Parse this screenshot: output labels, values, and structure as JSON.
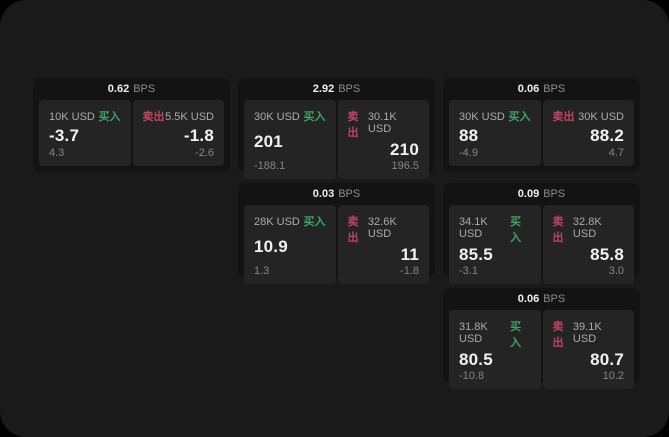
{
  "colors": {
    "page_bg": "#000000",
    "window_bg": "#1a1a1a",
    "card_bg": "#131313",
    "panel_bg": "#242424",
    "buy_green": "#3da366",
    "sell_red": "#c0455f"
  },
  "cards": [
    {
      "grid": {
        "row": 1,
        "col": 1
      },
      "bps_value": "0.62",
      "bps_unit": "BPS",
      "buy": {
        "size": "10K USD",
        "side_label": "买入",
        "price": "-3.7",
        "delta": "4.3"
      },
      "sell": {
        "side_label": "卖出",
        "size": "5.5K USD",
        "price": "-1.8",
        "delta": "-2.6"
      }
    },
    {
      "grid": {
        "row": 1,
        "col": 2
      },
      "bps_value": "2.92",
      "bps_unit": "BPS",
      "buy": {
        "size": "30K USD",
        "side_label": "买入",
        "price": "201",
        "delta": "-188.1"
      },
      "sell": {
        "side_label": "卖出",
        "size": "30.1K USD",
        "price": "210",
        "delta": "196.5"
      }
    },
    {
      "grid": {
        "row": 1,
        "col": 3
      },
      "bps_value": "0.06",
      "bps_unit": "BPS",
      "buy": {
        "size": "30K USD",
        "side_label": "买入",
        "price": "88",
        "delta": "-4.9"
      },
      "sell": {
        "side_label": "卖出",
        "size": "30K USD",
        "price": "88.2",
        "delta": "4.7"
      }
    },
    {
      "grid": {
        "row": 2,
        "col": 2
      },
      "bps_value": "0.03",
      "bps_unit": "BPS",
      "buy": {
        "size": "28K USD",
        "side_label": "买入",
        "price": "10.9",
        "delta": "1.3"
      },
      "sell": {
        "side_label": "卖出",
        "size": "32.6K USD",
        "price": "11",
        "delta": "-1.8"
      }
    },
    {
      "grid": {
        "row": 2,
        "col": 3
      },
      "bps_value": "0.09",
      "bps_unit": "BPS",
      "buy": {
        "size": "34.1K USD",
        "side_label": "买入",
        "price": "85.5",
        "delta": "-3.1"
      },
      "sell": {
        "side_label": "卖出",
        "size": "32.8K USD",
        "price": "85.8",
        "delta": "3.0"
      }
    },
    {
      "grid": {
        "row": 3,
        "col": 3
      },
      "bps_value": "0.06",
      "bps_unit": "BPS",
      "buy": {
        "size": "31.8K USD",
        "side_label": "买入",
        "price": "80.5",
        "delta": "-10.8"
      },
      "sell": {
        "side_label": "卖出",
        "size": "39.1K USD",
        "price": "80.7",
        "delta": "10.2"
      }
    }
  ]
}
